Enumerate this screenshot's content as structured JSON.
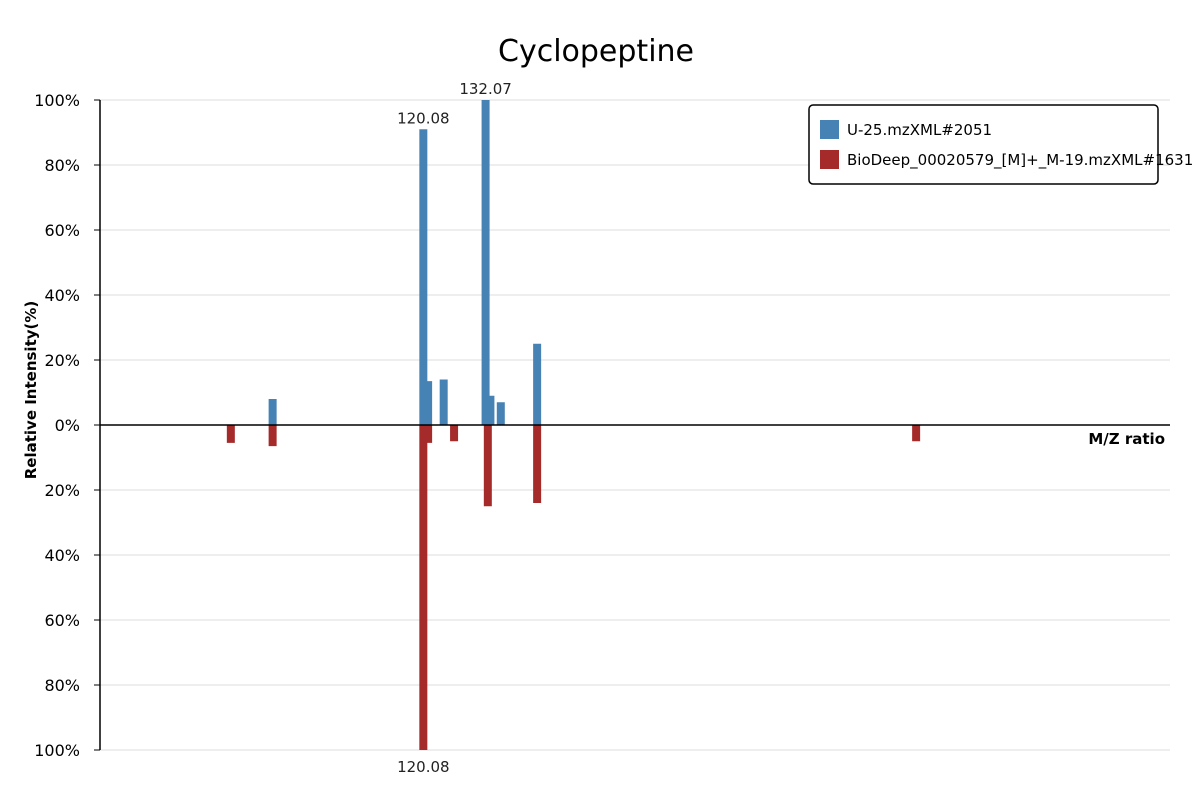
{
  "chart_data": {
    "type": "bar",
    "title": "Cyclopeptine",
    "xlabel": "M/Z ratio",
    "ylabel": "Relative Intensity(%)",
    "ylim": [
      -100,
      100
    ],
    "yticks": [
      "100%",
      "80%",
      "60%",
      "40%",
      "20%",
      "0%",
      "20%",
      "40%",
      "60%",
      "80%",
      "100%"
    ],
    "grid": true,
    "legend_position": "top-right",
    "colors": {
      "top": "#4682b4",
      "bottom": "#a52a2a"
    },
    "series": [
      {
        "name": "U-25.mzXML#2051",
        "color": "#4682b4",
        "points": [
          {
            "mz": 91.05,
            "intensity": 8
          },
          {
            "mz": 120.08,
            "intensity": 91
          },
          {
            "mz": 121.0,
            "intensity": 13.5
          },
          {
            "mz": 124.0,
            "intensity": 14
          },
          {
            "mz": 132.07,
            "intensity": 100
          },
          {
            "mz": 133.0,
            "intensity": 9
          },
          {
            "mz": 135.0,
            "intensity": 7
          },
          {
            "mz": 142.0,
            "intensity": 25
          }
        ]
      },
      {
        "name": "BioDeep_00020579_[M]+_M-19.mzXML#1631",
        "color": "#a52a2a",
        "points": [
          {
            "mz": 83.0,
            "intensity": 5.5
          },
          {
            "mz": 91.05,
            "intensity": 6.5
          },
          {
            "mz": 120.08,
            "intensity": 100
          },
          {
            "mz": 121.0,
            "intensity": 5.5
          },
          {
            "mz": 126.0,
            "intensity": 5
          },
          {
            "mz": 132.5,
            "intensity": 25
          },
          {
            "mz": 142.0,
            "intensity": 24
          },
          {
            "mz": 215.0,
            "intensity": 5
          }
        ]
      }
    ],
    "peak_labels": {
      "top": [
        {
          "mz": 120.08,
          "intensity": 91,
          "text": "120.08"
        },
        {
          "mz": 132.07,
          "intensity": 100,
          "text": "132.07"
        }
      ],
      "bottom": [
        {
          "mz": 120.08,
          "intensity": 100,
          "text": "120.08"
        }
      ]
    },
    "x_range": [
      57.8,
      263.9
    ]
  }
}
